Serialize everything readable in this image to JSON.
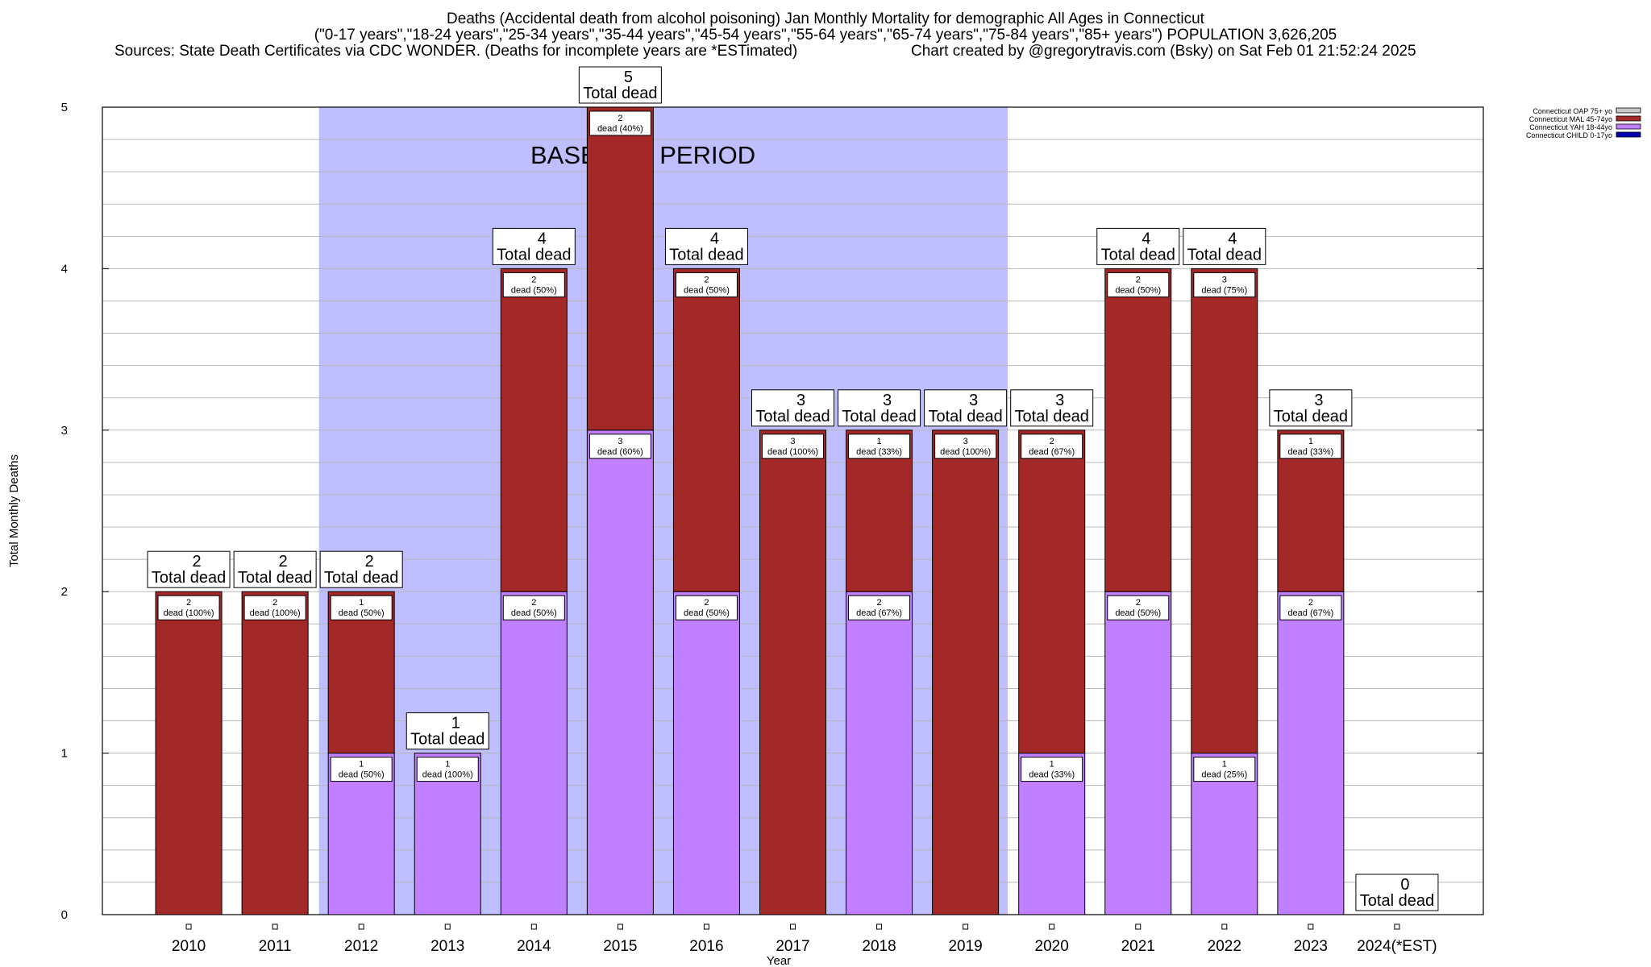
{
  "header": {
    "line1": "Deaths (Accidental death from alcohol poisoning) Jan Monthly Mortality for demographic All Ages in Connecticut",
    "line2": "(\"0-17 years\",\"18-24 years\",\"25-34 years\",\"35-44 years\",\"45-54 years\",\"55-64 years\",\"65-74 years\",\"75-84 years\",\"85+ years\") POPULATION 3,626,205",
    "sources": "Sources: State Death Certificates via CDC WONDER. (Deaths for incomplete years are *ESTimated)",
    "credit": "Chart created by @gregorytravis.com (Bsky) on Sat Feb 01 21:52:24 2025"
  },
  "chart_data": {
    "type": "bar",
    "stacked": true,
    "xlabel": "Year",
    "ylabel": "Total Monthly Deaths",
    "ylim": [
      0,
      5
    ],
    "yticks": [
      "0",
      "1",
      "2",
      "3",
      "4",
      "5"
    ],
    "grid": true,
    "categories": [
      "2010",
      "2011",
      "2012",
      "2013",
      "2014",
      "2015",
      "2016",
      "2017",
      "2018",
      "2019",
      "2020",
      "2021",
      "2022",
      "2023",
      "2024(*EST)"
    ],
    "baseline": {
      "label": "BASELINE PERIOD",
      "from": "2012",
      "to": "2019"
    },
    "total_label": "Total dead",
    "totals": [
      "2",
      "2",
      "2",
      "1",
      "4",
      "5",
      "4",
      "3",
      "3",
      "3",
      "3",
      "4",
      "4",
      "3",
      "0"
    ],
    "legend_position": "top-right",
    "series": [
      {
        "name": "Connecticut OAP 75+ yo",
        "color": "#c8c8c8",
        "values": [
          0,
          0,
          0,
          0,
          0,
          0,
          0,
          0,
          0,
          0,
          0,
          0,
          0,
          0,
          0
        ],
        "labels": []
      },
      {
        "name": "Connecticut MAL 45-74yo",
        "color": "#a32828",
        "values": [
          2,
          2,
          1,
          0,
          2,
          2,
          2,
          3,
          1,
          3,
          2,
          2,
          3,
          1,
          0
        ],
        "labels": [
          {
            "count": "2",
            "text": "dead (100%)"
          },
          {
            "count": "2",
            "text": "dead (100%)"
          },
          {
            "count": "1",
            "text": "dead (50%)"
          },
          null,
          {
            "count": "2",
            "text": "dead (50%)"
          },
          {
            "count": "2",
            "text": "dead (40%)"
          },
          {
            "count": "2",
            "text": "dead (50%)"
          },
          {
            "count": "3",
            "text": "dead (100%)"
          },
          {
            "count": "1",
            "text": "dead (33%)"
          },
          {
            "count": "3",
            "text": "dead (100%)"
          },
          {
            "count": "2",
            "text": "dead (67%)"
          },
          {
            "count": "2",
            "text": "dead (50%)"
          },
          {
            "count": "3",
            "text": "dead (75%)"
          },
          {
            "count": "1",
            "text": "dead (33%)"
          },
          null
        ]
      },
      {
        "name": "Connecticut YAH 18-44yo",
        "color": "#c080ff",
        "values": [
          0,
          0,
          1,
          1,
          2,
          3,
          2,
          0,
          2,
          0,
          1,
          2,
          1,
          2,
          0
        ],
        "labels": [
          null,
          null,
          {
            "count": "1",
            "text": "dead (50%)"
          },
          {
            "count": "1",
            "text": "dead (100%)"
          },
          {
            "count": "2",
            "text": "dead (50%)"
          },
          {
            "count": "3",
            "text": "dead (60%)"
          },
          {
            "count": "2",
            "text": "dead (50%)"
          },
          null,
          {
            "count": "2",
            "text": "dead (67%)"
          },
          null,
          {
            "count": "1",
            "text": "dead (33%)"
          },
          {
            "count": "2",
            "text": "dead (50%)"
          },
          {
            "count": "1",
            "text": "dead (25%)"
          },
          {
            "count": "2",
            "text": "dead (67%)"
          },
          null
        ]
      },
      {
        "name": "Connecticut CHILD 0-17yo",
        "color": "#0000b0",
        "values": [
          0,
          0,
          0,
          0,
          0,
          0,
          0,
          0,
          0,
          0,
          0,
          0,
          0,
          0,
          0
        ],
        "labels": []
      }
    ],
    "colors": {
      "baseline_fill": "#bfbfff",
      "grid": "#b8b8b8",
      "axis": "#000000"
    }
  }
}
